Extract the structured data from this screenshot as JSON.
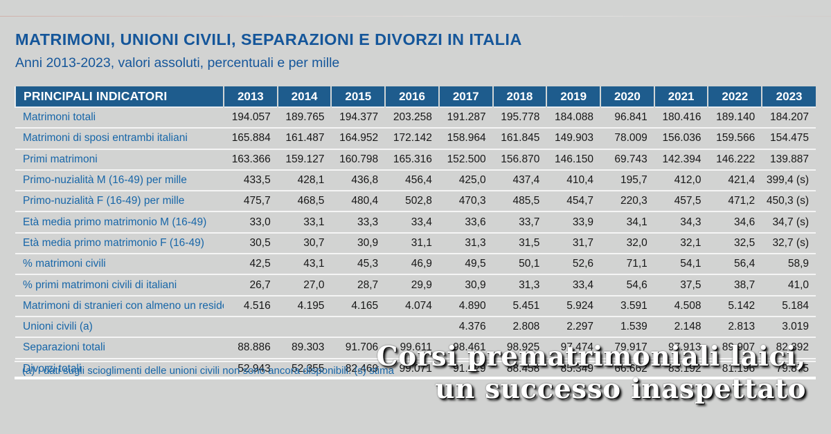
{
  "page": {
    "title": "MATRIMONI, UNIONI CIVILI, SEPARAZIONI E DIVORZI IN ITALIA",
    "subtitle": "Anni 2013-2023, valori assoluti, percentuali e per mille",
    "footnote": "(a) I dati sugli scioglimenti delle unioni civili non sono ancora disponibili. (s) stima"
  },
  "overlay": {
    "line1": "Corsi prematrimoniali laici,",
    "line2": "un successo inaspettato"
  },
  "colors": {
    "page_bg": "#d2d3d2",
    "header_bg": "#1e5c8d",
    "title_blue": "#15569a",
    "label_blue": "#1766a8",
    "value_text": "#161616",
    "overlay_text": "#ffffff"
  },
  "chart_data": {
    "type": "table",
    "title": "MATRIMONI, UNIONI CIVILI, SEPARAZIONI E DIVORZI IN ITALIA",
    "subtitle": "Anni 2013-2023, valori assoluti, percentuali e per mille",
    "row_header": "PRINCIPALI INDICATORI",
    "columns": [
      "2013",
      "2014",
      "2015",
      "2016",
      "2017",
      "2018",
      "2019",
      "2020",
      "2021",
      "2022",
      "2023"
    ],
    "rows": [
      {
        "label": "Matrimoni totali",
        "values": [
          "194.057",
          "189.765",
          "194.377",
          "203.258",
          "191.287",
          "195.778",
          "184.088",
          "96.841",
          "180.416",
          "189.140",
          "184.207"
        ]
      },
      {
        "label": "Matrimoni di sposi entrambi italiani",
        "values": [
          "165.884",
          "161.487",
          "164.952",
          "172.142",
          "158.964",
          "161.845",
          "149.903",
          "78.009",
          "156.036",
          "159.566",
          "154.475"
        ]
      },
      {
        "label": "Primi matrimoni",
        "values": [
          "163.366",
          "159.127",
          "160.798",
          "165.316",
          "152.500",
          "156.870",
          "146.150",
          "69.743",
          "142.394",
          "146.222",
          "139.887"
        ]
      },
      {
        "label": "Primo-nuzialità M (16-49) per mille",
        "values": [
          "433,5",
          "428,1",
          "436,8",
          "456,4",
          "425,0",
          "437,4",
          "410,4",
          "195,7",
          "412,0",
          "421,4",
          "399,4 (s)"
        ]
      },
      {
        "label": "Primo-nuzialità F (16-49) per mille",
        "values": [
          "475,7",
          "468,5",
          "480,4",
          "502,8",
          "470,3",
          "485,5",
          "454,7",
          "220,3",
          "457,5",
          "471,2",
          "450,3 (s)"
        ]
      },
      {
        "label": "Età media primo matrimonio M (16-49)",
        "values": [
          "33,0",
          "33,1",
          "33,3",
          "33,4",
          "33,6",
          "33,7",
          "33,9",
          "34,1",
          "34,3",
          "34,6",
          "34,7 (s)"
        ]
      },
      {
        "label": "Età media primo matrimonio F (16-49)",
        "values": [
          "30,5",
          "30,7",
          "30,9",
          "31,1",
          "31,3",
          "31,5",
          "31,7",
          "32,0",
          "32,1",
          "32,5",
          "32,7 (s)"
        ]
      },
      {
        "label": "% matrimoni civili",
        "values": [
          "42,5",
          "43,1",
          "45,3",
          "46,9",
          "49,5",
          "50,1",
          "52,6",
          "71,1",
          "54,1",
          "56,4",
          "58,9"
        ]
      },
      {
        "label": "% primi matrimoni civili di italiani",
        "values": [
          "26,7",
          "27,0",
          "28,7",
          "29,9",
          "30,9",
          "31,3",
          "33,4",
          "54,6",
          "37,5",
          "38,7",
          "41,0"
        ]
      },
      {
        "label": "Matrimoni di stranieri con almeno un residente",
        "values": [
          "4.516",
          "4.195",
          "4.165",
          "4.074",
          "4.890",
          "5.451",
          "5.924",
          "3.591",
          "4.508",
          "5.142",
          "5.184"
        ]
      },
      {
        "label": "Unioni civili (a)",
        "values": [
          "",
          "",
          "",
          "",
          "4.376",
          "2.808",
          "2.297",
          "1.539",
          "2.148",
          "2.813",
          "3.019"
        ]
      },
      {
        "label": "Separazioni totali",
        "values": [
          "88.886",
          "89.303",
          "91.706",
          "99.611",
          "98.461",
          "98.925",
          "97.474",
          "79.917",
          "97.913",
          "89.907",
          "82.392"
        ]
      },
      {
        "label": "Divorzi totali",
        "values": [
          "52.943",
          "52.355",
          "82.469",
          "99.071",
          "91.629",
          "88.458",
          "85.349",
          "66.662",
          "83.192",
          "81.196",
          "79.875"
        ]
      }
    ],
    "footnote": "(a) I dati sugli scioglimenti delle unioni civili non sono ancora disponibili. (s) stima",
    "legend_position": "none",
    "grid": "white row separators on gray background"
  }
}
